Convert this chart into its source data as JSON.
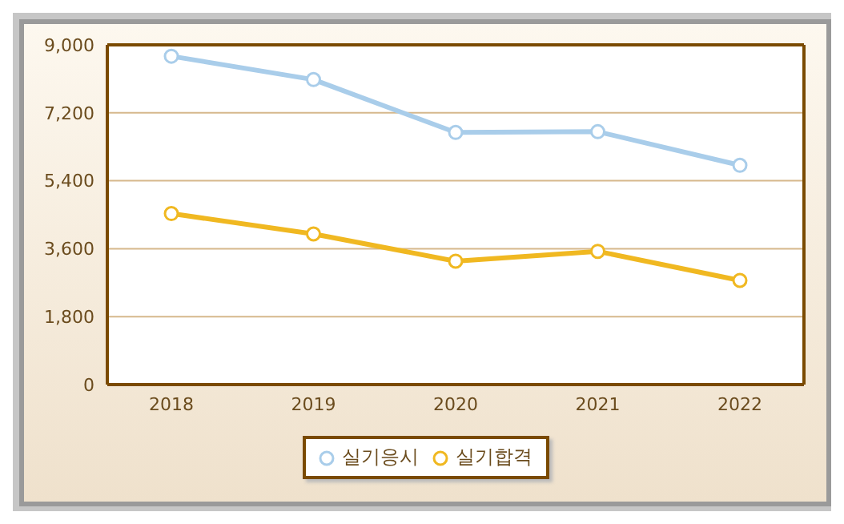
{
  "chart_data": {
    "type": "line",
    "categories": [
      "2018",
      "2019",
      "2020",
      "2021",
      "2022"
    ],
    "series": [
      {
        "name": "실기응시",
        "color": "#a9cdea",
        "values": [
          8700,
          8080,
          6680,
          6700,
          5810
        ]
      },
      {
        "name": "실기합격",
        "color": "#f0b821",
        "values": [
          4530,
          3990,
          3270,
          3530,
          2760
        ]
      }
    ],
    "ylim": [
      0,
      9000
    ],
    "yticks": [
      0,
      {
        "value": 1800,
        "label": "1,800"
      },
      {
        "value": 3600,
        "label": "3,600"
      },
      {
        "value": 5400,
        "label": "5,400"
      },
      {
        "value": 7200,
        "label": "7,200"
      },
      {
        "value": 9000,
        "label": "9,000"
      }
    ],
    "grid": "y",
    "legend": "bottom",
    "marker": "circle",
    "line_style": "solid"
  }
}
